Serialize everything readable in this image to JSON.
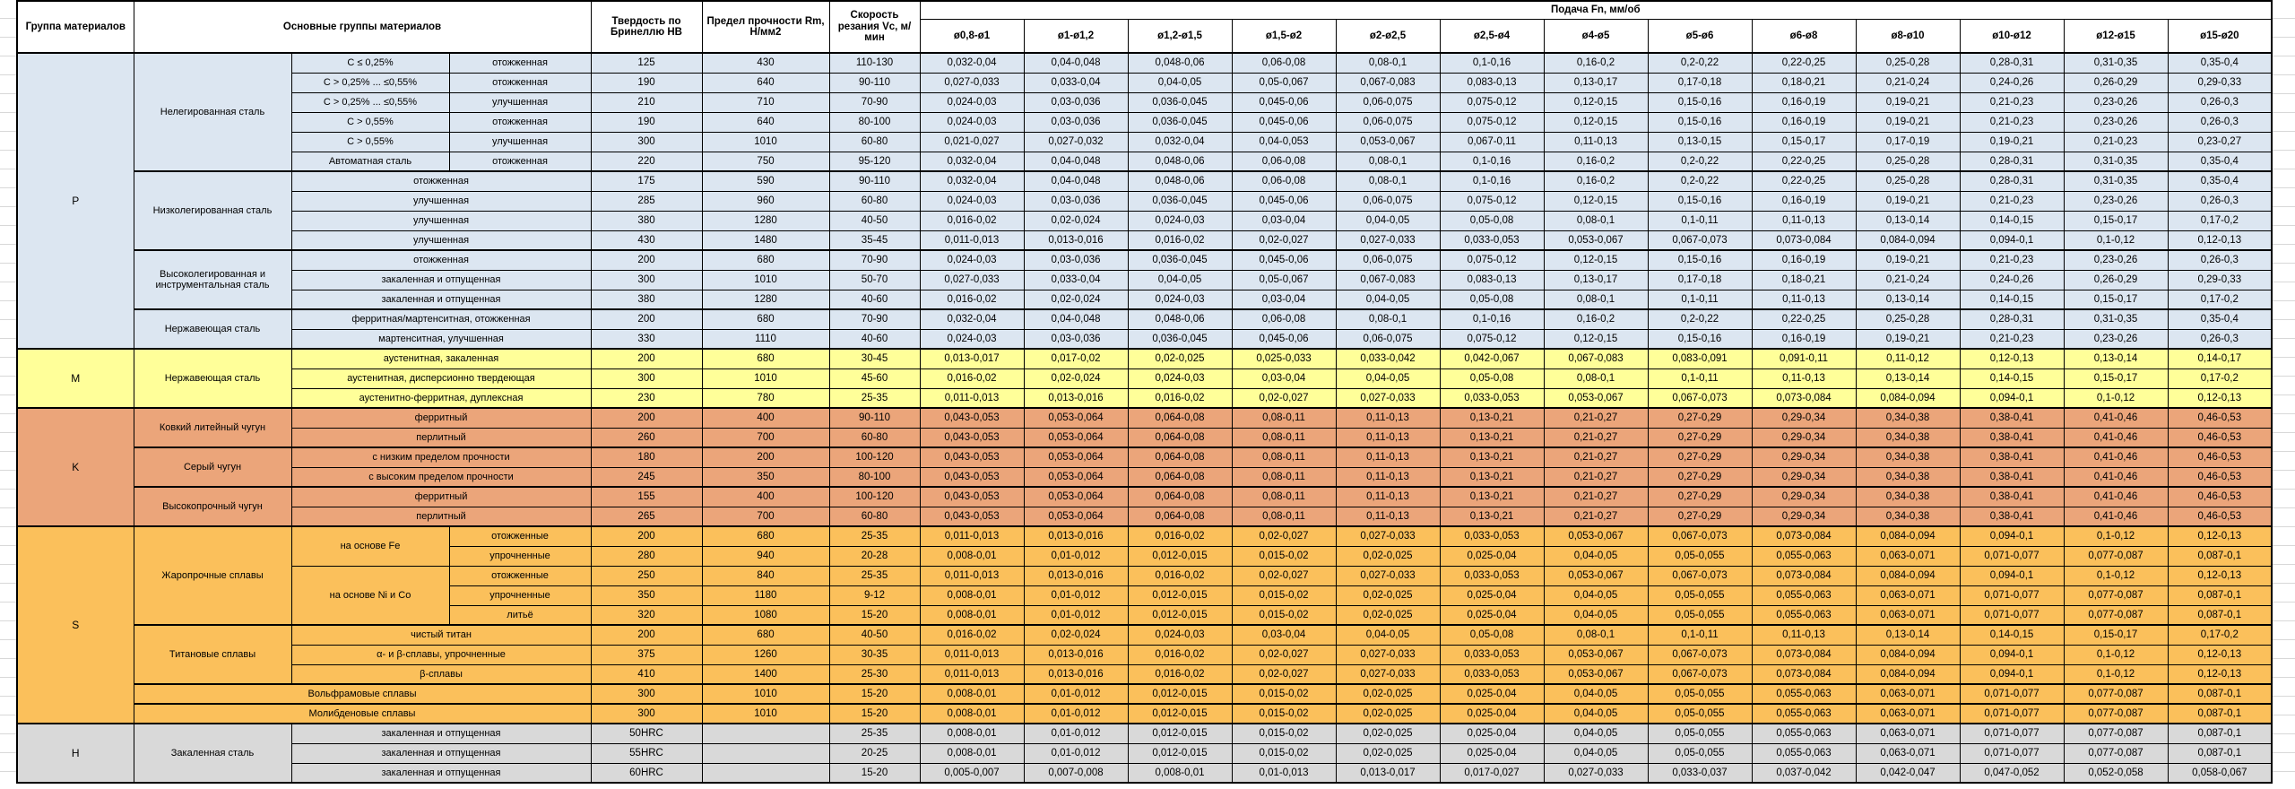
{
  "sheet": {
    "header": {
      "group": "Группа материалов",
      "main": "Основные группы материалов",
      "hardness": "Твердость по Бринеллю HB",
      "strength": "Предел прочности Rm, Н/мм2",
      "speed": "Скорость резания Vc, м/мин",
      "feed": "Подача Fn, мм/об",
      "diameters": [
        "ø0,8-ø1",
        "ø1-ø1,2",
        "ø1,2-ø1,5",
        "ø1,5-ø2",
        "ø2-ø2,5",
        "ø2,5-ø4",
        "ø4-ø5",
        "ø5-ø6",
        "ø6-ø8",
        "ø8-ø10",
        "ø10-ø12",
        "ø12-ø15",
        "ø15-ø20"
      ]
    },
    "feed_series": {
      "A": [
        "0,032-0,04",
        "0,04-0,048",
        "0,048-0,06",
        "0,06-0,08",
        "0,08-0,1",
        "0,1-0,16",
        "0,16-0,2",
        "0,2-0,22",
        "0,22-0,25",
        "0,25-0,28",
        "0,28-0,31",
        "0,31-0,35",
        "0,35-0,4"
      ],
      "B": [
        "0,027-0,033",
        "0,033-0,04",
        "0,04-0,05",
        "0,05-0,067",
        "0,067-0,083",
        "0,083-0,13",
        "0,13-0,17",
        "0,17-0,18",
        "0,18-0,21",
        "0,21-0,24",
        "0,24-0,26",
        "0,26-0,29",
        "0,29-0,33"
      ],
      "C": [
        "0,024-0,03",
        "0,03-0,036",
        "0,036-0,045",
        "0,045-0,06",
        "0,06-0,075",
        "0,075-0,12",
        "0,12-0,15",
        "0,15-0,16",
        "0,16-0,19",
        "0,19-0,21",
        "0,21-0,23",
        "0,23-0,26",
        "0,26-0,3"
      ],
      "D": [
        "0,021-0,027",
        "0,027-0,032",
        "0,032-0,04",
        "0,04-0,053",
        "0,053-0,067",
        "0,067-0,11",
        "0,11-0,13",
        "0,13-0,15",
        "0,15-0,17",
        "0,17-0,19",
        "0,19-0,21",
        "0,21-0,23",
        "0,23-0,27"
      ],
      "E": [
        "0,016-0,02",
        "0,02-0,024",
        "0,024-0,03",
        "0,03-0,04",
        "0,04-0,05",
        "0,05-0,08",
        "0,08-0,1",
        "0,1-0,11",
        "0,11-0,13",
        "0,13-0,14",
        "0,14-0,15",
        "0,15-0,17",
        "0,17-0,2"
      ],
      "F": [
        "0,011-0,013",
        "0,013-0,016",
        "0,016-0,02",
        "0,02-0,027",
        "0,027-0,033",
        "0,033-0,053",
        "0,053-0,067",
        "0,067-0,073",
        "0,073-0,084",
        "0,084-0,094",
        "0,094-0,1",
        "0,1-0,12",
        "0,12-0,13"
      ],
      "G": [
        "0,013-0,017",
        "0,017-0,02",
        "0,02-0,025",
        "0,025-0,033",
        "0,033-0,042",
        "0,042-0,067",
        "0,067-0,083",
        "0,083-0,091",
        "0,091-0,11",
        "0,11-0,12",
        "0,12-0,13",
        "0,13-0,14",
        "0,14-0,17"
      ],
      "K": [
        "0,043-0,053",
        "0,053-0,064",
        "0,064-0,08",
        "0,08-0,11",
        "0,11-0,13",
        "0,13-0,21",
        "0,21-0,27",
        "0,27-0,29",
        "0,29-0,34",
        "0,34-0,38",
        "0,38-0,41",
        "0,41-0,46",
        "0,46-0,53"
      ],
      "S": [
        "0,008-0,01",
        "0,01-0,012",
        "0,012-0,015",
        "0,015-0,02",
        "0,02-0,025",
        "0,025-0,04",
        "0,04-0,05",
        "0,05-0,055",
        "0,055-0,063",
        "0,063-0,071",
        "0,071-0,077",
        "0,077-0,087",
        "0,087-0,1"
      ],
      "H": [
        "0,005-0,007",
        "0,007-0,008",
        "0,008-0,01",
        "0,01-0,013",
        "0,013-0,017",
        "0,017-0,027",
        "0,027-0,033",
        "0,033-0,037",
        "0,037-0,042",
        "0,042-0,047",
        "0,047-0,052",
        "0,052-0,058",
        "0,058-0,067"
      ]
    },
    "groups": [
      {
        "letter": "P",
        "color": "#dce6f1",
        "rows": [
          {
            "labels": [
              {
                "t": "Нелегированная сталь",
                "rs": 6
              },
              {
                "t": "C ≤ 0,25%"
              },
              {
                "t": "отожженная"
              }
            ],
            "hb": "125",
            "rm": "430",
            "vc": "110-130",
            "feed": "A"
          },
          {
            "labels": [
              {
                "t": "C > 0,25% ... ≤0,55%"
              },
              {
                "t": "отожженная"
              }
            ],
            "hb": "190",
            "rm": "640",
            "vc": "90-110",
            "feed": "B"
          },
          {
            "labels": [
              {
                "t": "C > 0,25% ... ≤0,55%"
              },
              {
                "t": "улучшенная"
              }
            ],
            "hb": "210",
            "rm": "710",
            "vc": "70-90",
            "feed": "C"
          },
          {
            "labels": [
              {
                "t": "C > 0,55%"
              },
              {
                "t": "отожженная"
              }
            ],
            "hb": "190",
            "rm": "640",
            "vc": "80-100",
            "feed": "C"
          },
          {
            "labels": [
              {
                "t": "C > 0,55%"
              },
              {
                "t": "улучшенная"
              }
            ],
            "hb": "300",
            "rm": "1010",
            "vc": "60-80",
            "feed": "D"
          },
          {
            "labels": [
              {
                "t": "Автоматная сталь"
              },
              {
                "t": "отожженная"
              }
            ],
            "hb": "220",
            "rm": "750",
            "vc": "95-120",
            "feed": "A"
          },
          {
            "thick": true,
            "labels": [
              {
                "t": "Низколегированная сталь",
                "rs": 4
              },
              {
                "t": "отожженная",
                "cs": 2
              }
            ],
            "hb": "175",
            "rm": "590",
            "vc": "90-110",
            "feed": "A"
          },
          {
            "labels": [
              {
                "t": "улучшенная",
                "cs": 2
              }
            ],
            "hb": "285",
            "rm": "960",
            "vc": "60-80",
            "feed": "C"
          },
          {
            "labels": [
              {
                "t": "улучшенная",
                "cs": 2
              }
            ],
            "hb": "380",
            "rm": "1280",
            "vc": "40-50",
            "feed": "E"
          },
          {
            "labels": [
              {
                "t": "улучшенная",
                "cs": 2
              }
            ],
            "hb": "430",
            "rm": "1480",
            "vc": "35-45",
            "feed": "F"
          },
          {
            "thick": true,
            "labels": [
              {
                "t": "Высоколегированная и инструментальная сталь",
                "rs": 3
              },
              {
                "t": "отожженная",
                "cs": 2
              }
            ],
            "hb": "200",
            "rm": "680",
            "vc": "70-90",
            "feed": "C"
          },
          {
            "labels": [
              {
                "t": "закаленная и отпущенная",
                "cs": 2
              }
            ],
            "hb": "300",
            "rm": "1010",
            "vc": "50-70",
            "feed": "B"
          },
          {
            "labels": [
              {
                "t": "закаленная и отпущенная",
                "cs": 2
              }
            ],
            "hb": "380",
            "rm": "1280",
            "vc": "40-60",
            "feed": "E"
          },
          {
            "thick": true,
            "labels": [
              {
                "t": "Нержавеющая сталь",
                "rs": 2
              },
              {
                "t": "ферритная/мартенситная, отожженная",
                "cs": 2
              }
            ],
            "hb": "200",
            "rm": "680",
            "vc": "70-90",
            "feed": "A"
          },
          {
            "labels": [
              {
                "t": "мартенситная, улучшенная",
                "cs": 2
              }
            ],
            "hb": "330",
            "rm": "1110",
            "vc": "40-60",
            "feed": "C"
          }
        ]
      },
      {
        "letter": "M",
        "color": "#ffff99",
        "rows": [
          {
            "labels": [
              {
                "t": "Нержавеющая сталь",
                "rs": 3
              },
              {
                "t": "аустенитная, закаленная",
                "cs": 2
              }
            ],
            "hb": "200",
            "rm": "680",
            "vc": "30-45",
            "feed": "G"
          },
          {
            "labels": [
              {
                "t": "аустенитная, дисперсионно твердеющая",
                "cs": 2
              }
            ],
            "hb": "300",
            "rm": "1010",
            "vc": "45-60",
            "feed": "E"
          },
          {
            "labels": [
              {
                "t": "аустенитно-ферритная, дуплексная",
                "cs": 2
              }
            ],
            "hb": "230",
            "rm": "780",
            "vc": "25-35",
            "feed": "F"
          }
        ]
      },
      {
        "letter": "K",
        "color": "#eba57a",
        "rows": [
          {
            "labels": [
              {
                "t": "Ковкий литейный чугун",
                "rs": 2
              },
              {
                "t": "ферритный",
                "cs": 2
              }
            ],
            "hb": "200",
            "rm": "400",
            "vc": "90-110",
            "feed": "K"
          },
          {
            "labels": [
              {
                "t": "перлитный",
                "cs": 2
              }
            ],
            "hb": "260",
            "rm": "700",
            "vc": "60-80",
            "feed": "K"
          },
          {
            "thick": true,
            "labels": [
              {
                "t": "Серый чугун",
                "rs": 2
              },
              {
                "t": "с низким пределом прочности",
                "cs": 2
              }
            ],
            "hb": "180",
            "rm": "200",
            "vc": "100-120",
            "feed": "K"
          },
          {
            "labels": [
              {
                "t": "с высоким пределом прочности",
                "cs": 2
              }
            ],
            "hb": "245",
            "rm": "350",
            "vc": "80-100",
            "feed": "K"
          },
          {
            "thick": true,
            "labels": [
              {
                "t": "Высокопрочный чугун",
                "rs": 2
              },
              {
                "t": "ферритный",
                "cs": 2
              }
            ],
            "hb": "155",
            "rm": "400",
            "vc": "100-120",
            "feed": "K"
          },
          {
            "labels": [
              {
                "t": "перлитный",
                "cs": 2
              }
            ],
            "hb": "265",
            "rm": "700",
            "vc": "60-80",
            "feed": "K"
          }
        ]
      },
      {
        "letter": "S",
        "color": "#fbc05b",
        "rows": [
          {
            "labels": [
              {
                "t": "Жаропрочные сплавы",
                "rs": 5
              },
              {
                "t": "на основе Fe",
                "rs": 2
              },
              {
                "t": "отожженные"
              }
            ],
            "hb": "200",
            "rm": "680",
            "vc": "25-35",
            "feed": "F"
          },
          {
            "labels": [
              {
                "t": "упрочненные"
              }
            ],
            "hb": "280",
            "rm": "940",
            "vc": "20-28",
            "feed": "S"
          },
          {
            "labels": [
              {
                "t": "на основе Ni и Co",
                "rs": 3
              },
              {
                "t": "отожженные"
              }
            ],
            "hb": "250",
            "rm": "840",
            "vc": "25-35",
            "feed": "F"
          },
          {
            "labels": [
              {
                "t": "упрочненные"
              }
            ],
            "hb": "350",
            "rm": "1180",
            "vc": "9-12",
            "feed": "S"
          },
          {
            "labels": [
              {
                "t": "литьё"
              }
            ],
            "hb": "320",
            "rm": "1080",
            "vc": "15-20",
            "feed": "S"
          },
          {
            "thick": true,
            "labels": [
              {
                "t": "Титановые сплавы",
                "rs": 3
              },
              {
                "t": "чистый титан",
                "cs": 2
              }
            ],
            "hb": "200",
            "rm": "680",
            "vc": "40-50",
            "feed": "E"
          },
          {
            "labels": [
              {
                "t": "α- и β-сплавы, упрочненные",
                "cs": 2
              }
            ],
            "hb": "375",
            "rm": "1260",
            "vc": "30-35",
            "feed": "F"
          },
          {
            "labels": [
              {
                "t": "β-сплавы",
                "cs": 2
              }
            ],
            "hb": "410",
            "rm": "1400",
            "vc": "25-30",
            "feed": "F"
          },
          {
            "thick": true,
            "labels": [
              {
                "t": "Вольфрамовые сплавы",
                "cs": 3
              }
            ],
            "hb": "300",
            "rm": "1010",
            "vc": "15-20",
            "feed": "S"
          },
          {
            "thick": true,
            "labels": [
              {
                "t": "Молибденовые сплавы",
                "cs": 3
              }
            ],
            "hb": "300",
            "rm": "1010",
            "vc": "15-20",
            "feed": "S"
          }
        ]
      },
      {
        "letter": "H",
        "color": "#d9d9d9",
        "rows": [
          {
            "labels": [
              {
                "t": "Закаленная сталь",
                "rs": 3
              },
              {
                "t": "закаленная и отпущенная",
                "cs": 2
              }
            ],
            "hb": "50HRC",
            "rm": "",
            "vc": "25-35",
            "feed": "S"
          },
          {
            "labels": [
              {
                "t": "закаленная и отпущенная",
                "cs": 2
              }
            ],
            "hb": "55HRC",
            "rm": "",
            "vc": "20-25",
            "feed": "S"
          },
          {
            "labels": [
              {
                "t": "закаленная и отпущенная",
                "cs": 2
              }
            ],
            "hb": "60HRC",
            "rm": "",
            "vc": "15-20",
            "feed": "H"
          }
        ]
      }
    ]
  }
}
